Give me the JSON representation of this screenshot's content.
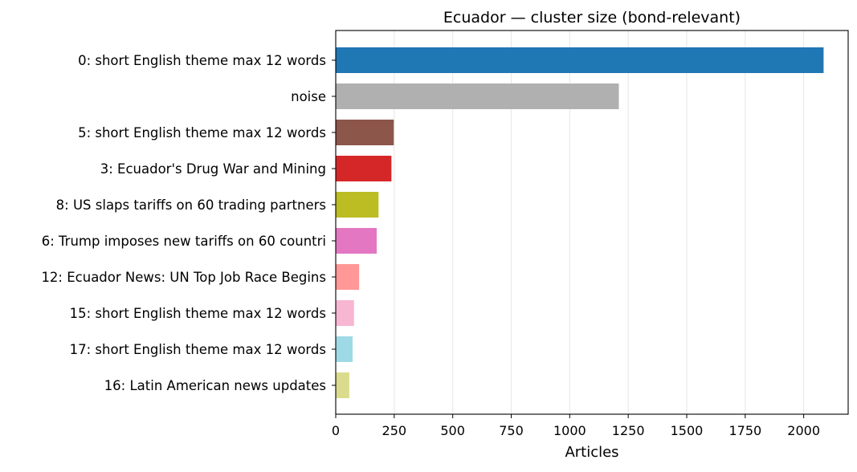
{
  "chart_data": {
    "type": "bar",
    "orientation": "horizontal",
    "title": "Ecuador — cluster size (bond-relevant)",
    "xlabel": "Articles",
    "ylabel": "",
    "xlim": [
      0,
      2190
    ],
    "xticks": [
      0,
      250,
      500,
      750,
      1000,
      1250,
      1500,
      1750,
      2000
    ],
    "grid": "x",
    "categories": [
      "0: short English theme max 12 words",
      "noise",
      "5: short English theme max 12 words",
      "3: Ecuador's Drug War and Mining",
      "8: US slaps tariffs on 60 trading partners",
      "6: Trump imposes new tariffs on 60 countri",
      "12: Ecuador News: UN Top Job Race Begins",
      "15: short English theme max 12 words",
      "17: short English theme max 12 words",
      "16: Latin American news updates"
    ],
    "values": [
      2085,
      1210,
      248,
      238,
      183,
      175,
      100,
      78,
      72,
      58
    ],
    "colors": [
      "#1f77b4",
      "#b0b0b0",
      "#8c564b",
      "#d62728",
      "#bcbd22",
      "#e377c2",
      "#ff9896",
      "#f7b6d2",
      "#9edae5",
      "#dbdb8d"
    ]
  }
}
